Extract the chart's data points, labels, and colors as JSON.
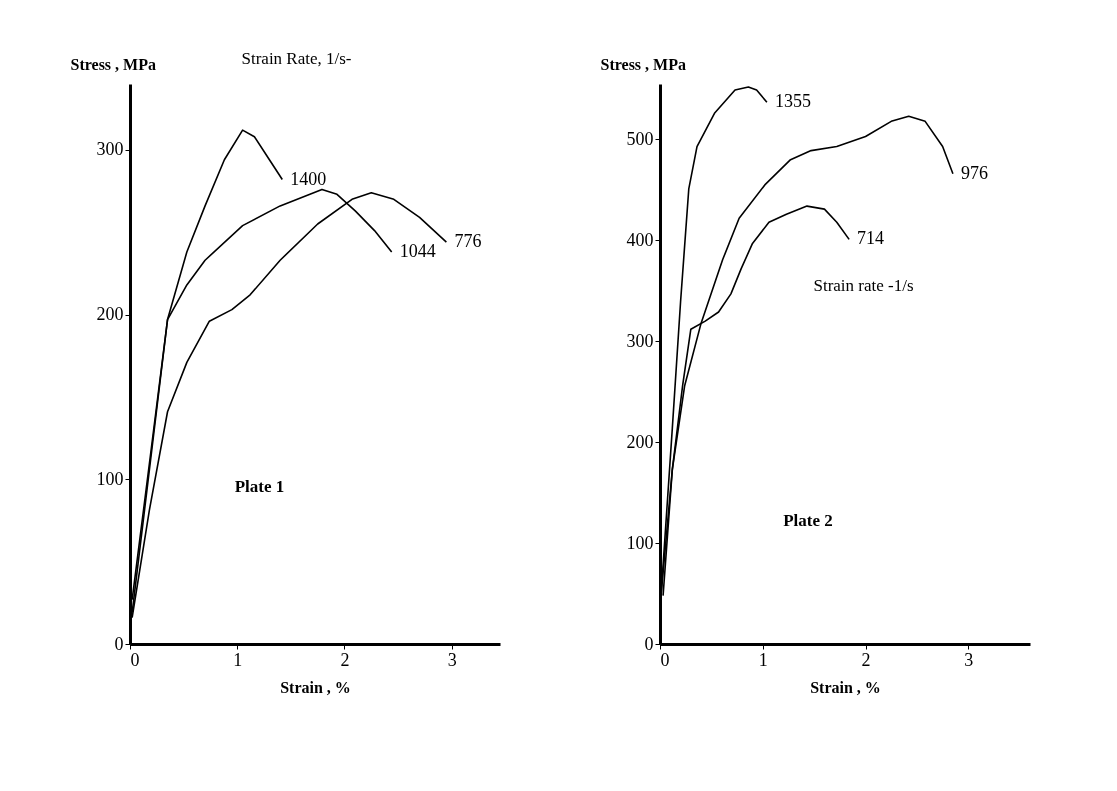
{
  "chart_data": [
    {
      "type": "line",
      "xlabel": "Strain , %",
      "ylabel": "Stress , MPa",
      "xlim": [
        0,
        3.45
      ],
      "ylim": [
        0,
        340
      ],
      "xticks": [
        0,
        1,
        2,
        3
      ],
      "yticks": [
        0,
        100,
        200,
        300
      ],
      "grid": false,
      "marker": "none",
      "line_style": "solid",
      "annotations": [
        "Strain Rate, 1/s-",
        "Plate 1"
      ],
      "series": [
        {
          "name": "1400",
          "color": "#000000",
          "x": [
            0.02,
            0.35,
            0.53,
            0.7,
            0.88,
            1.05,
            1.16,
            1.3,
            1.42
          ],
          "values": [
            19,
            197,
            238,
            266,
            294,
            312,
            308,
            294,
            282
          ]
        },
        {
          "name": "1044",
          "color": "#000000",
          "x": [
            0.02,
            0.18,
            0.35,
            0.53,
            0.7,
            1.05,
            1.4,
            1.79,
            1.93,
            2.1,
            2.28,
            2.44
          ],
          "values": [
            27,
            109,
            197,
            218,
            233,
            254,
            266,
            276,
            273,
            263,
            251,
            238
          ]
        },
        {
          "name": "776",
          "color": "#000000",
          "x": [
            0.02,
            0.18,
            0.35,
            0.53,
            0.74,
            0.95,
            1.12,
            1.4,
            1.75,
            2.07,
            2.25,
            2.46,
            2.7,
            2.95
          ],
          "values": [
            16,
            81,
            141,
            171,
            196,
            203,
            212,
            233,
            255,
            270,
            274,
            270,
            259,
            244
          ]
        }
      ]
    },
    {
      "type": "line",
      "xlabel": "Strain , %",
      "ylabel": "Stress , MPa",
      "xlim": [
        0,
        3.6
      ],
      "ylim": [
        0,
        555
      ],
      "xticks": [
        0,
        1,
        2,
        3
      ],
      "yticks": [
        0,
        100,
        200,
        300,
        400,
        500
      ],
      "grid": false,
      "marker": "none",
      "line_style": "solid",
      "annotations": [
        "Strain rate -1/s",
        "Plate 2"
      ],
      "series": [
        {
          "name": "1355",
          "color": "#000000",
          "x": [
            0.01,
            0.12,
            0.2,
            0.28,
            0.36,
            0.53,
            0.73,
            0.86,
            0.94,
            1.04
          ],
          "values": [
            48,
            214,
            339,
            451,
            493,
            526,
            549,
            552,
            549,
            537
          ]
        },
        {
          "name": "976",
          "color": "#000000",
          "x": [
            0.03,
            0.12,
            0.24,
            0.4,
            0.61,
            0.77,
            1.02,
            1.27,
            1.47,
            1.72,
            2.0,
            2.25,
            2.42,
            2.58,
            2.75,
            2.85
          ],
          "values": [
            48,
            173,
            256,
            318,
            381,
            422,
            455,
            480,
            489,
            493,
            503,
            518,
            523,
            518,
            493,
            466
          ]
        },
        {
          "name": "714",
          "color": "#000000",
          "x": [
            0.01,
            0.12,
            0.22,
            0.3,
            0.44,
            0.57,
            0.69,
            0.79,
            0.9,
            1.06,
            1.23,
            1.43,
            1.6,
            1.72,
            1.84
          ],
          "values": [
            48,
            173,
            256,
            312,
            320,
            329,
            347,
            372,
            397,
            418,
            426,
            434,
            431,
            418,
            401
          ]
        }
      ]
    }
  ]
}
